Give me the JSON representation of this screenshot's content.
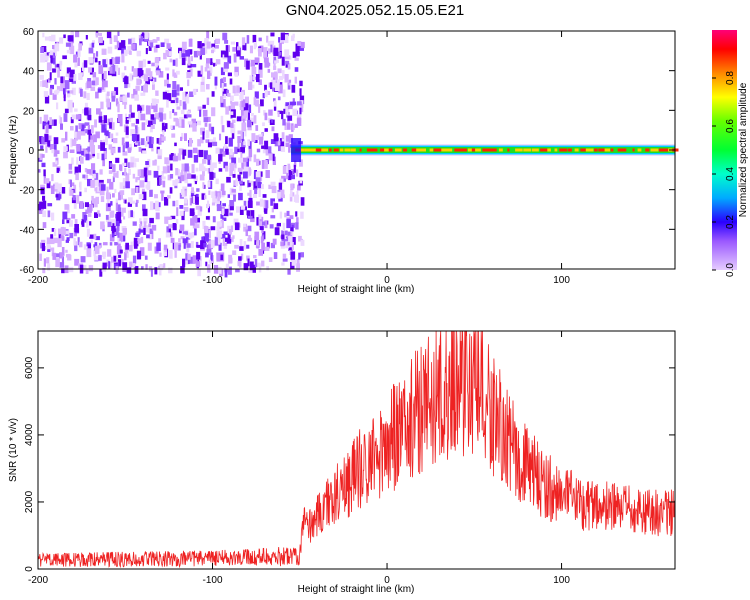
{
  "title": "GN04.2025.052.15.05.E21",
  "chart_data": [
    {
      "type": "heatmap",
      "xlabel": "Height of straight line (km)",
      "ylabel": "Frequency (Hz)",
      "xlim": [
        -200,
        165
      ],
      "ylim": [
        -60,
        60
      ],
      "xticks": [
        "-200",
        "-100",
        "0",
        "100"
      ],
      "xtick_values": [
        -200,
        -100,
        0,
        100
      ],
      "yticks": [
        "60",
        "40",
        "20",
        "0",
        "-20",
        "-40",
        "-60"
      ],
      "ytick_values": [
        60,
        40,
        20,
        0,
        -20,
        -40,
        -60
      ],
      "colorbar": {
        "label": "Normalized spectral amplitude",
        "range": [
          0,
          1
        ],
        "ticks": [
          "0.0",
          "0.2",
          "0.4",
          "0.6",
          "0.8"
        ],
        "tick_values": [
          0.0,
          0.2,
          0.4,
          0.6,
          0.8
        ]
      },
      "regions": [
        {
          "description": "noise",
          "x_range": [
            -200,
            -55
          ],
          "y_range": [
            -60,
            60
          ],
          "amplitude": [
            0.0,
            0.2
          ]
        },
        {
          "description": "signal line",
          "x_range": [
            -55,
            165
          ],
          "frequency_hz": 0,
          "amplitude": [
            0.3,
            1.0
          ]
        }
      ],
      "colors": {
        "low": "#d9b3ff",
        "mid": "#6a00ff",
        "high": "#ff0000",
        "line": "#22cc22"
      }
    },
    {
      "type": "line",
      "xlabel": "Height of straight line (km)",
      "ylabel": "SNR (10 * v/v)",
      "xlim": [
        -200,
        165
      ],
      "ylim": [
        0,
        7100
      ],
      "xticks": [
        "-200",
        "-100",
        "0",
        "100"
      ],
      "xtick_values": [
        -200,
        -100,
        0,
        100
      ],
      "yticks": [
        "0",
        "2000",
        "4000",
        "6000"
      ],
      "ytick_values": [
        0,
        2000,
        4000,
        6000
      ],
      "color": "#ee2222",
      "x": [
        -200,
        -180,
        -160,
        -140,
        -120,
        -100,
        -80,
        -60,
        -50,
        -48,
        -45,
        -40,
        -30,
        -20,
        -10,
        0,
        10,
        20,
        30,
        40,
        50,
        60,
        70,
        80,
        90,
        100,
        110,
        120,
        130,
        140,
        150,
        165
      ],
      "y": [
        300,
        300,
        320,
        330,
        340,
        350,
        380,
        420,
        500,
        1500,
        1300,
        1700,
        2300,
        2900,
        3400,
        3900,
        4500,
        5100,
        5700,
        6000,
        5800,
        5000,
        3900,
        3200,
        2700,
        2300,
        2100,
        2000,
        1900,
        1850,
        1800,
        1750
      ]
    }
  ]
}
